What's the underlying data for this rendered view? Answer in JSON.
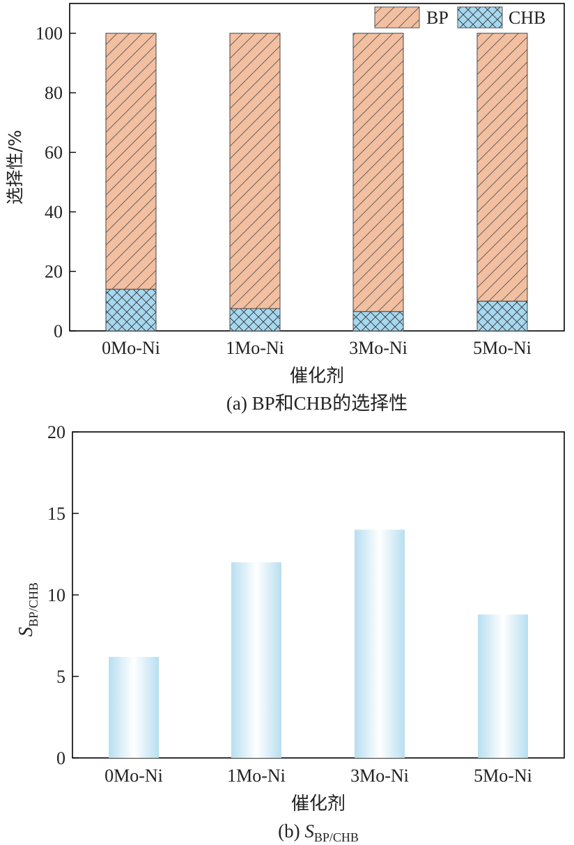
{
  "chart_data": [
    {
      "type": "bar",
      "stacked": true,
      "categories": [
        "0Mo-Ni",
        "1Mo-Ni",
        "3Mo-Ni",
        "5Mo-Ni"
      ],
      "series": [
        {
          "name": "CHB",
          "values": [
            14,
            7.5,
            6.5,
            10
          ],
          "color": "#a6d8f0",
          "pattern": "crosshatch"
        },
        {
          "name": "BP",
          "values": [
            86,
            92.5,
            93.5,
            90
          ],
          "color": "#f2bfa0",
          "pattern": "diagonal"
        }
      ],
      "xlabel": "催化剂",
      "ylabel": "选择性/%",
      "ylim": [
        0,
        110
      ],
      "yticks": [
        0,
        20,
        40,
        60,
        80,
        100
      ],
      "legend": "top-right",
      "grid": false,
      "caption": "(a) BP和CHB的选择性"
    },
    {
      "type": "bar",
      "categories": [
        "0Mo-Ni",
        "1Mo-Ni",
        "3Mo-Ni",
        "5Mo-Ni"
      ],
      "values": [
        6.2,
        12,
        14,
        8.8
      ],
      "color": "#b8e0f0",
      "xlabel": "催化剂",
      "ylabel_main": "S",
      "ylabel_sub": "BP/CHB",
      "ylim": [
        0,
        20
      ],
      "yticks": [
        0,
        5,
        10,
        15,
        20
      ],
      "grid": false,
      "caption_prefix": "(b) ",
      "caption_main": "S",
      "caption_sub": "BP/CHB"
    }
  ]
}
